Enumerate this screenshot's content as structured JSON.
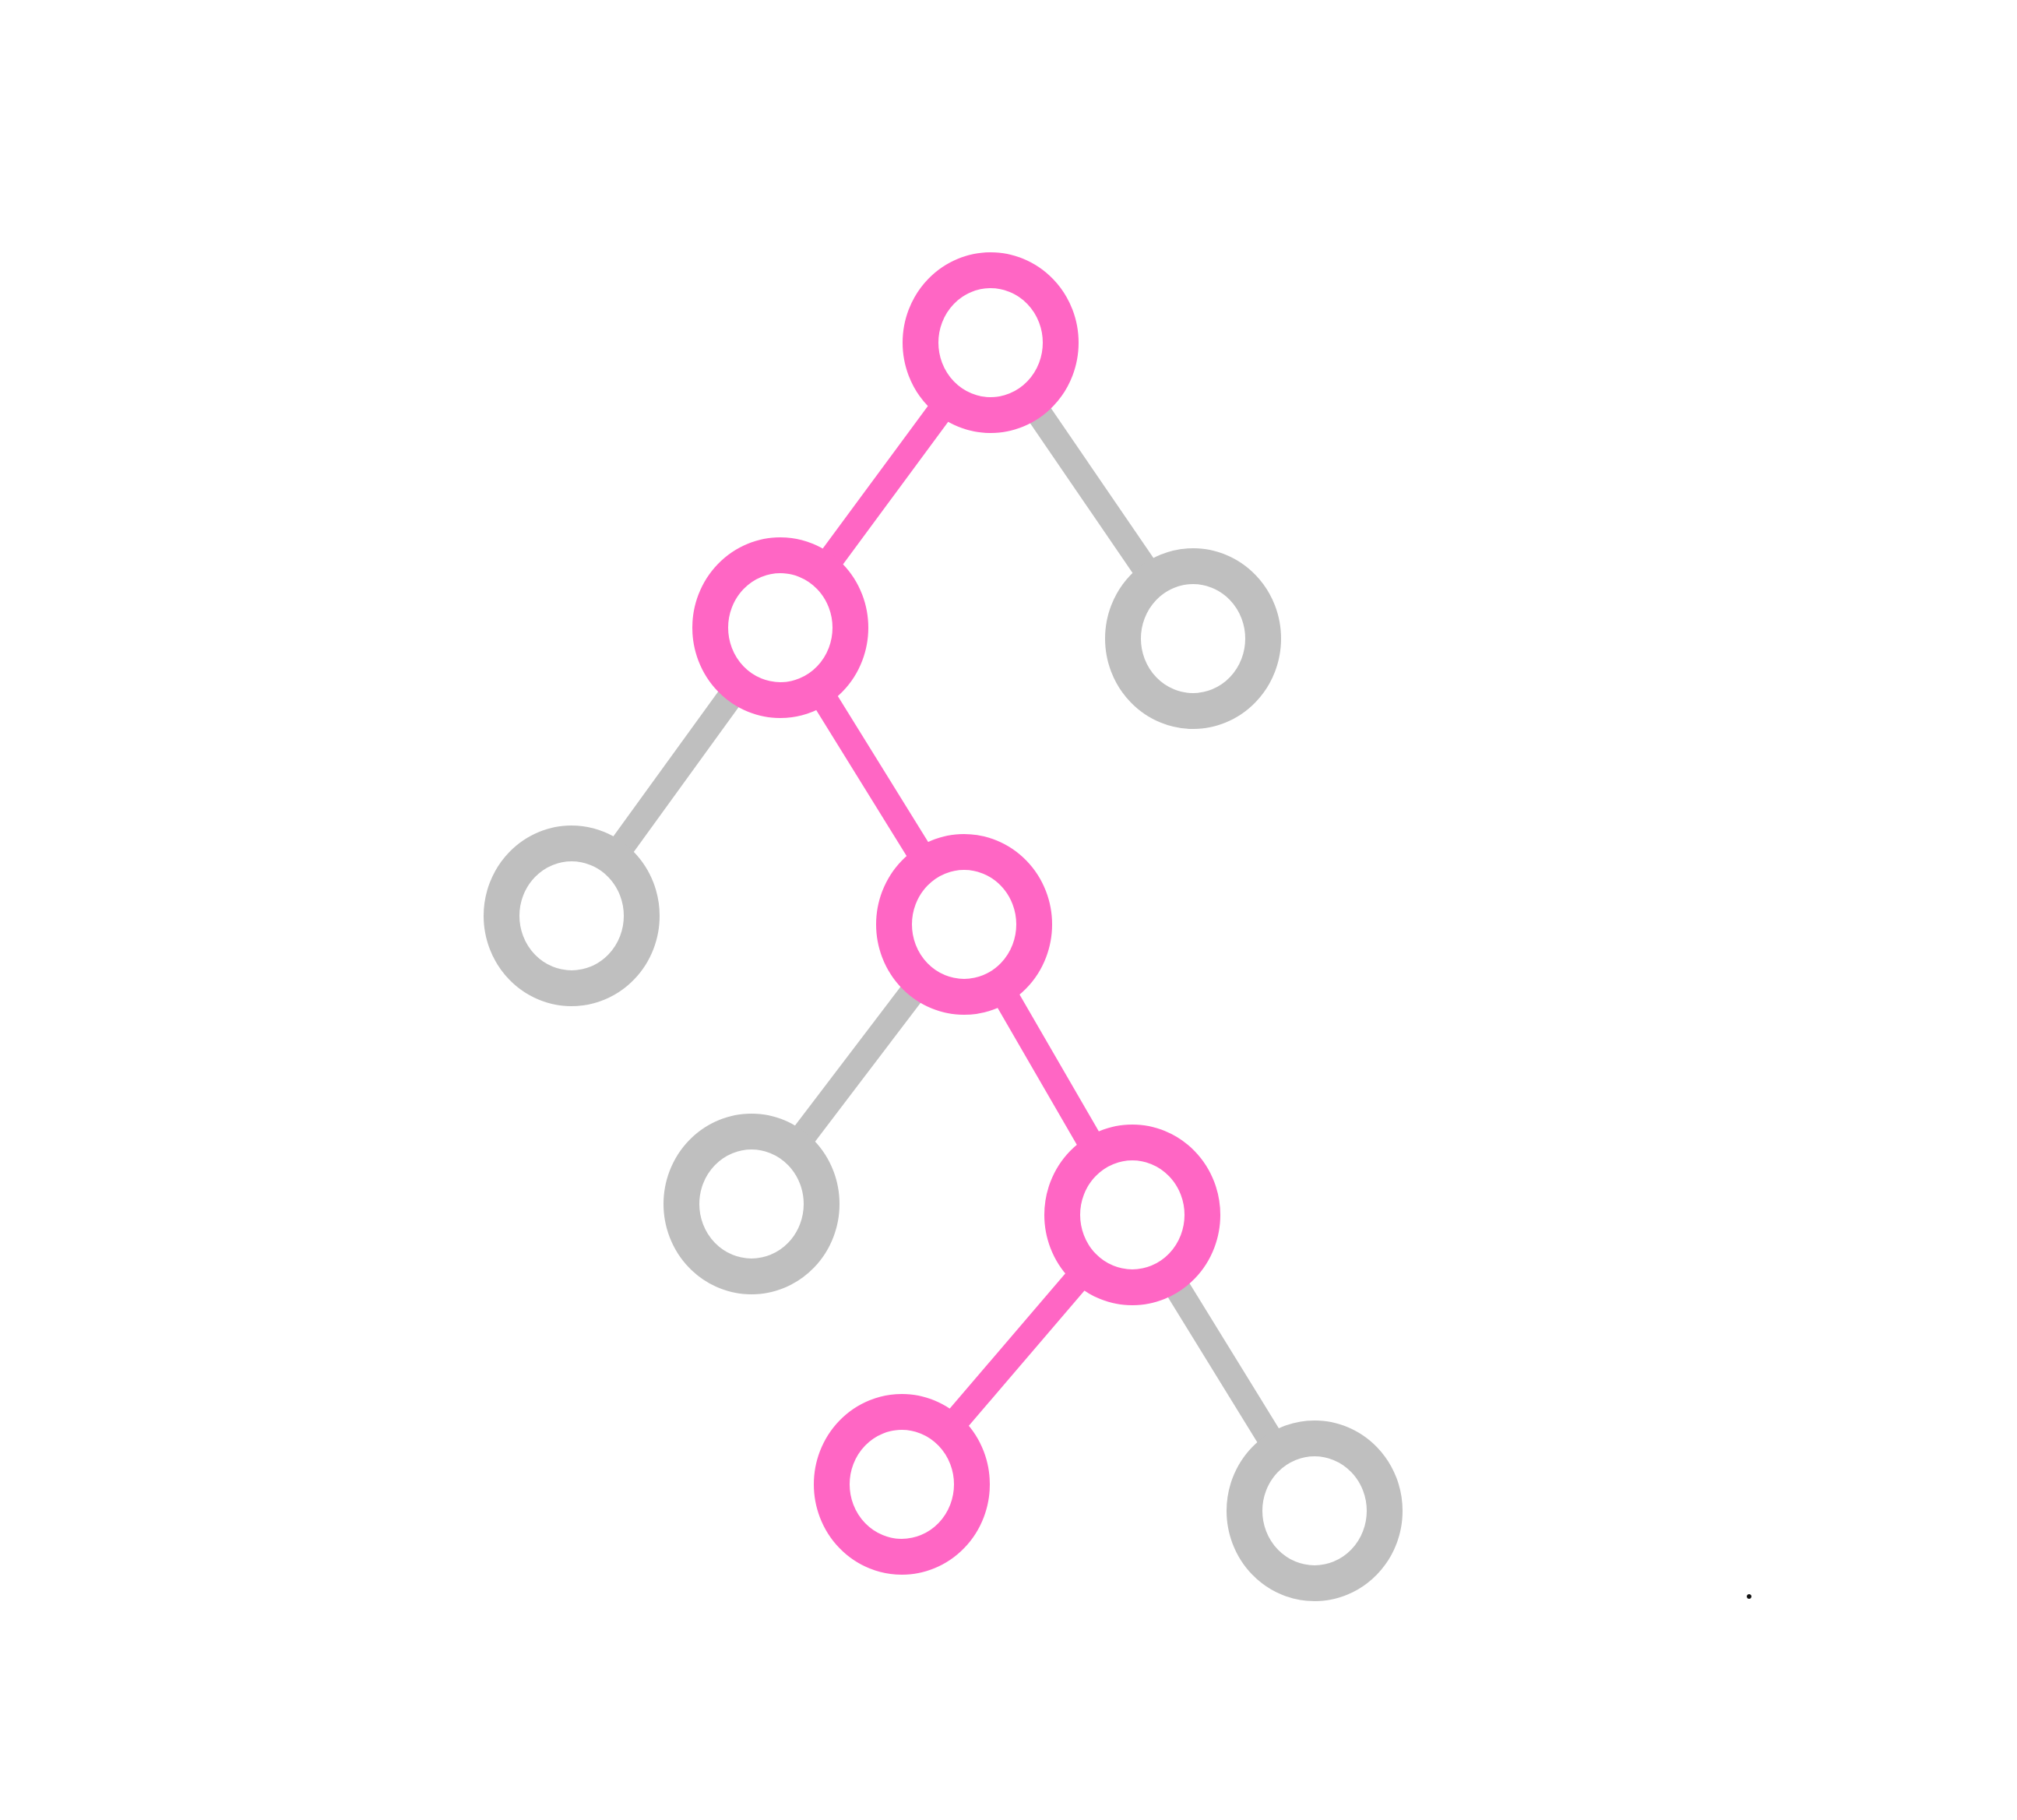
{
  "diagram": {
    "type": "binary-tree",
    "colors": {
      "highlight": "#ff66c4",
      "default": "#bfbfbf",
      "node_fill": "#ffffff",
      "background": "#ffffff"
    },
    "nodes": [
      {
        "id": "root",
        "highlighted": true
      },
      {
        "id": "root-left",
        "highlighted": true
      },
      {
        "id": "root-right",
        "highlighted": false
      },
      {
        "id": "root-left-left",
        "highlighted": false
      },
      {
        "id": "root-left-right",
        "highlighted": true
      },
      {
        "id": "root-left-right-left",
        "highlighted": false
      },
      {
        "id": "root-left-right-right",
        "highlighted": true
      },
      {
        "id": "root-left-right-right-left",
        "highlighted": true
      },
      {
        "id": "root-left-right-right-right",
        "highlighted": false
      }
    ],
    "edges": [
      {
        "from": "root",
        "to": "root-left",
        "highlighted": true
      },
      {
        "from": "root",
        "to": "root-right",
        "highlighted": false
      },
      {
        "from": "root-left",
        "to": "root-left-left",
        "highlighted": false
      },
      {
        "from": "root-left",
        "to": "root-left-right",
        "highlighted": true
      },
      {
        "from": "root-left-right",
        "to": "root-left-right-left",
        "highlighted": false
      },
      {
        "from": "root-left-right",
        "to": "root-left-right-right",
        "highlighted": true
      },
      {
        "from": "root-left-right-right",
        "to": "root-left-right-right-left",
        "highlighted": true
      },
      {
        "from": "root-left-right-right",
        "to": "root-left-right-right-right",
        "highlighted": false
      }
    ],
    "highlighted_path": [
      "root",
      "root-left",
      "root-left-right",
      "root-left-right-right",
      "root-left-right-right-left"
    ]
  }
}
